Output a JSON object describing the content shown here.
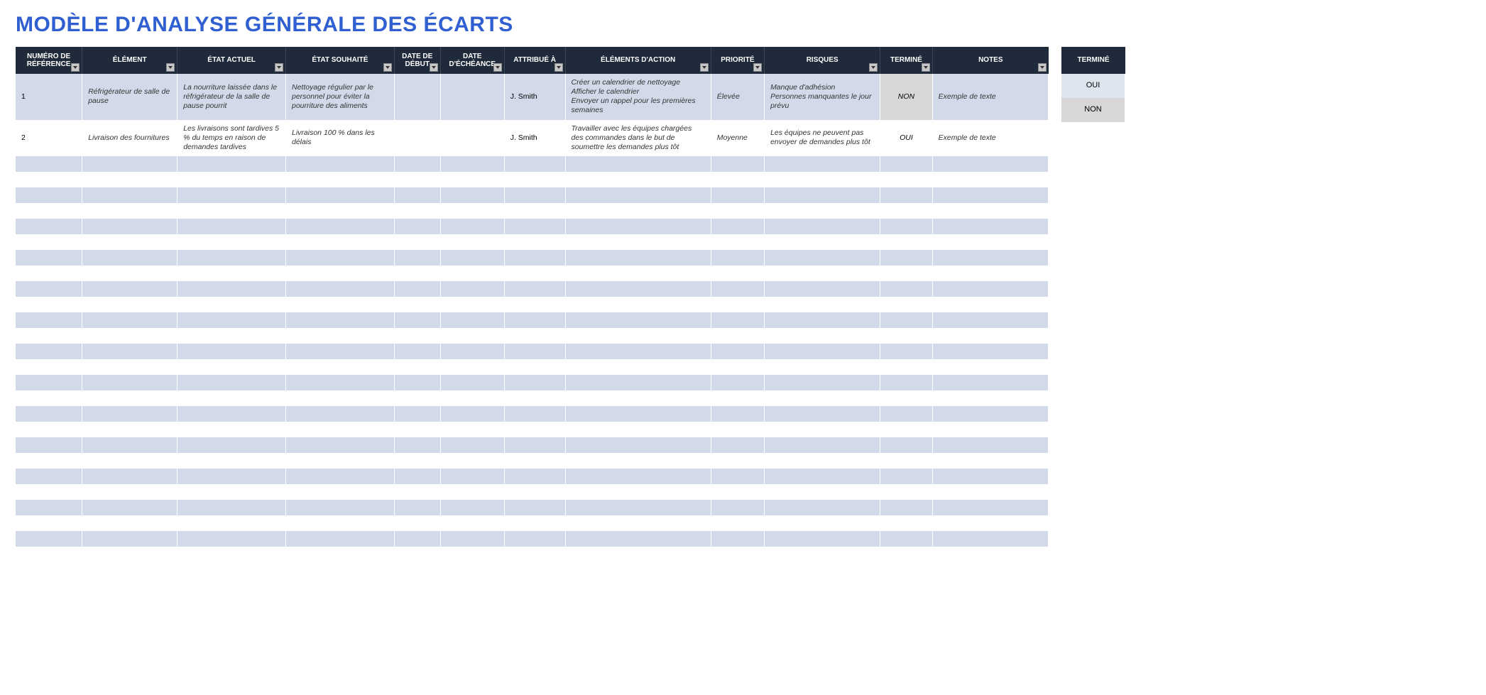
{
  "title": "MODÈLE D'ANALYSE GÉNÉRALE DES ÉCARTS",
  "colors": {
    "title": "#2f5fd1",
    "header_bg": "#1f2a3a",
    "header_fg": "#ffffff",
    "row_odd": "#d2dae9",
    "row_even": "#ffffff",
    "termine_non_bg": "#d7d7d7",
    "side_oui_bg": "#dfe5ef",
    "side_non_bg": "#d7d7d7"
  },
  "columns": [
    {
      "key": "ref",
      "label": "NUMÉRO DE RÉFÉRENCE"
    },
    {
      "key": "element",
      "label": "ÉLÉMENT"
    },
    {
      "key": "etat_actuel",
      "label": "ÉTAT ACTUEL"
    },
    {
      "key": "etat_souhaite",
      "label": "ÉTAT SOUHAITÉ"
    },
    {
      "key": "date_debut",
      "label": "DATE DE DÉBUT"
    },
    {
      "key": "date_echeance",
      "label": "DATE D'ÉCHÉANCE"
    },
    {
      "key": "attribue",
      "label": "ATTRIBUÉ À"
    },
    {
      "key": "actions",
      "label": "ÉLÉMENTS D'ACTION"
    },
    {
      "key": "priorite",
      "label": "PRIORITÉ"
    },
    {
      "key": "risques",
      "label": "RISQUES"
    },
    {
      "key": "termine",
      "label": "TERMINÉ"
    },
    {
      "key": "notes",
      "label": "NOTES"
    }
  ],
  "rows": [
    {
      "ref": "1",
      "element": "Réfrigérateur de salle de pause",
      "etat_actuel": "La nourriture laissée dans le réfrigérateur de la salle de pause pourrit",
      "etat_souhaite": "Nettoyage régulier par le personnel pour éviter la pourriture des aliments",
      "date_debut": "",
      "date_echeance": "",
      "attribue": "J. Smith",
      "actions": "Créer un calendrier de nettoyage\nAfficher le calendrier\nEnvoyer un rappel pour les premières semaines",
      "priorite": "Élevée",
      "risques": "Manque d'adhésion\nPersonnes manquantes le jour prévu",
      "termine": "NON",
      "notes": "Exemple de texte"
    },
    {
      "ref": "2",
      "element": "Livraison des fournitures",
      "etat_actuel": "Les livraisons sont tardives 5 % du temps en raison de demandes tardives",
      "etat_souhaite": "Livraison 100 % dans les délais",
      "date_debut": "",
      "date_echeance": "",
      "attribue": "J. Smith",
      "actions": "Travailler avec les équipes chargées des commandes dans le but de soumettre les demandes plus tôt",
      "priorite": "Moyenne",
      "risques": "Les équipes ne peuvent pas envoyer de demandes plus tôt",
      "termine": "OUI",
      "notes": "Exemple de texte"
    }
  ],
  "empty_row_count": 26,
  "side_panel": {
    "header": "TERMINÉ",
    "options": [
      "OUI",
      "NON"
    ]
  }
}
